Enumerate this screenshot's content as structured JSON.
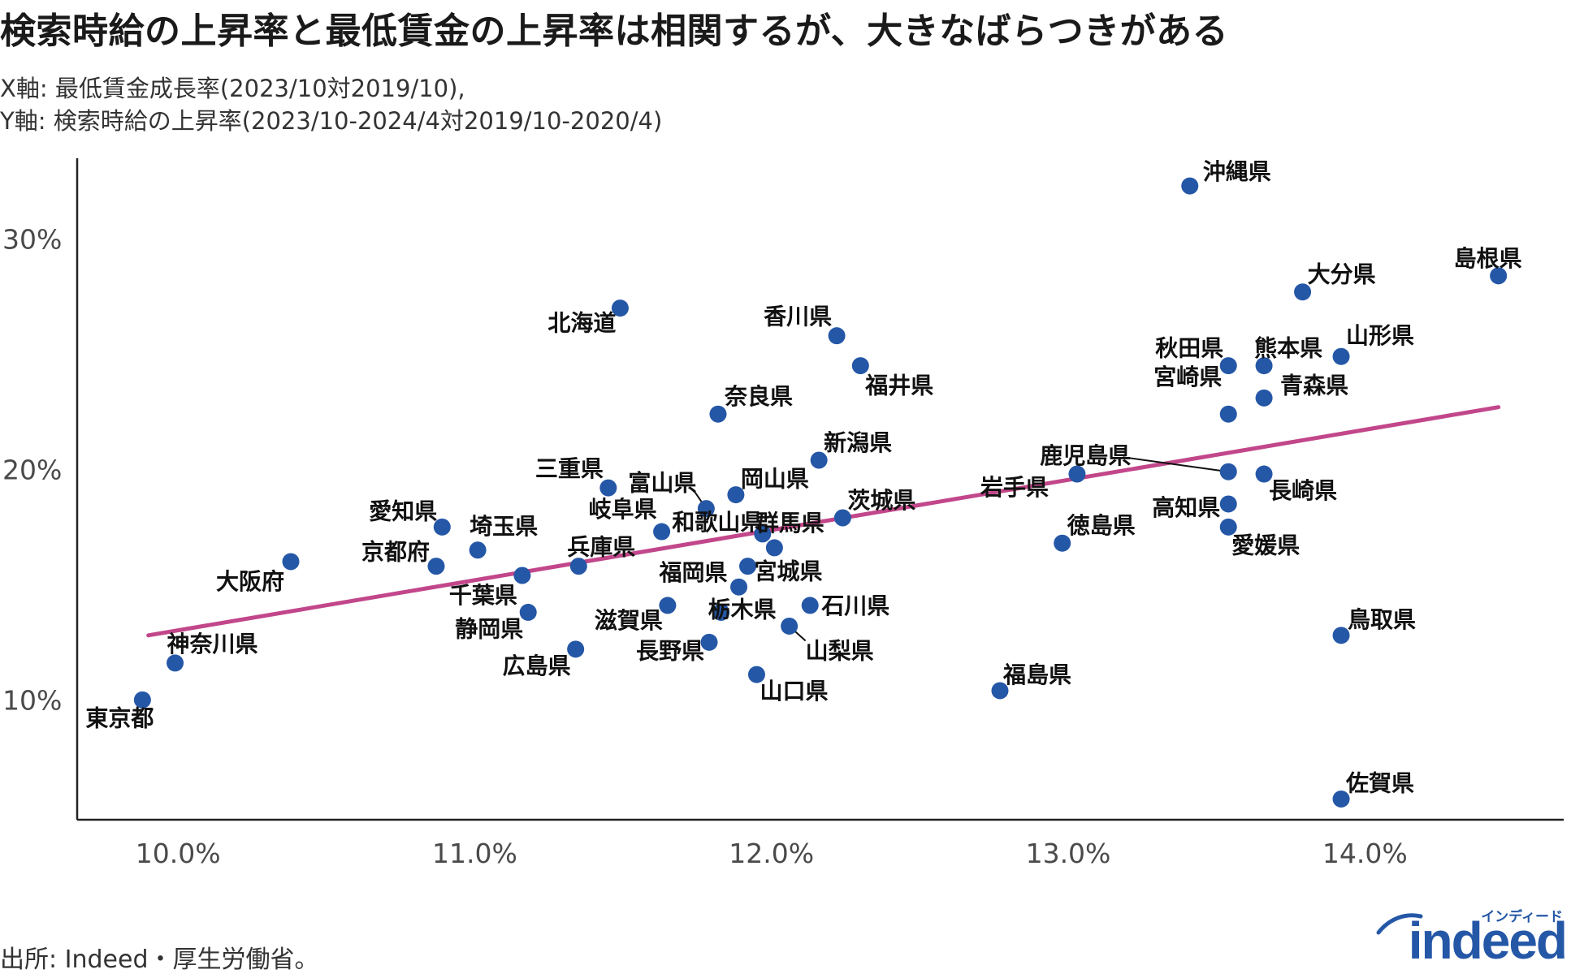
{
  "chart_data": {
    "type": "scatter",
    "title": "検索時給の上昇率と最低賃金の上昇率は相関するが、大きなばらつきがある",
    "subtitle_x": "X軸: 最低賃金成長率(2023/10対2019/10),",
    "subtitle_y": "Y軸: 検索時給の上昇率(2023/10-2024/4対2019/10-2020/4)",
    "x_ticks": [
      "10.0%",
      "11.0%",
      "12.0%",
      "13.0%",
      "14.0%"
    ],
    "y_ticks": [
      "10%",
      "20%",
      "30%"
    ],
    "x_tick_values": [
      10.0,
      11.0,
      12.0,
      13.0,
      14.0
    ],
    "y_tick_values": [
      10,
      20,
      30
    ],
    "xlim": [
      9.66,
      14.67
    ],
    "ylim": [
      4.8,
      33.5
    ],
    "point_color": "#2557a7",
    "trend_color": "#c2478a",
    "trendline": {
      "x1": 9.9,
      "y1": 12.8,
      "x2": 14.45,
      "y2": 22.7
    },
    "points": [
      {
        "label": "沖縄県",
        "x": 13.41,
        "y": 32.3
      },
      {
        "label": "島根県",
        "x": 14.45,
        "y": 28.4
      },
      {
        "label": "大分県",
        "x": 13.79,
        "y": 27.7
      },
      {
        "label": "北海道",
        "x": 11.49,
        "y": 27.0
      },
      {
        "label": "香川県",
        "x": 12.22,
        "y": 25.8
      },
      {
        "label": "山形県",
        "x": 13.92,
        "y": 24.9
      },
      {
        "label": "秋田県",
        "x": 13.54,
        "y": 24.5
      },
      {
        "label": "熊本県",
        "x": 13.66,
        "y": 24.5
      },
      {
        "label": "福井県",
        "x": 12.3,
        "y": 24.5
      },
      {
        "label": "青森県",
        "x": 13.66,
        "y": 23.1
      },
      {
        "label": "奈良県",
        "x": 11.82,
        "y": 22.4
      },
      {
        "label": "宮崎県",
        "x": 13.54,
        "y": 22.4
      },
      {
        "label": "新潟県",
        "x": 12.16,
        "y": 20.4
      },
      {
        "label": "鹿児島県",
        "x": 13.54,
        "y": 19.9
      },
      {
        "label": "岩手県",
        "x": 13.03,
        "y": 19.8
      },
      {
        "label": "長崎県",
        "x": 13.66,
        "y": 19.8
      },
      {
        "label": "三重県",
        "x": 11.45,
        "y": 19.2
      },
      {
        "label": "岡山県",
        "x": 11.88,
        "y": 18.9
      },
      {
        "label": "富山県",
        "x": 11.78,
        "y": 18.3
      },
      {
        "label": "高知県",
        "x": 13.54,
        "y": 18.5
      },
      {
        "label": "茨城県",
        "x": 12.24,
        "y": 17.9
      },
      {
        "label": "愛知県",
        "x": 10.89,
        "y": 17.5
      },
      {
        "label": "愛媛県",
        "x": 13.54,
        "y": 17.5
      },
      {
        "label": "岐阜県",
        "x": 11.63,
        "y": 17.3
      },
      {
        "label": "群馬県",
        "x": 11.97,
        "y": 17.2
      },
      {
        "label": "徳島県",
        "x": 12.98,
        "y": 16.8
      },
      {
        "label": "埼玉県",
        "x": 11.01,
        "y": 16.5
      },
      {
        "label": "和歌山県",
        "x": 12.01,
        "y": 16.6
      },
      {
        "label": "大阪府",
        "x": 10.38,
        "y": 16.0
      },
      {
        "label": "京都府",
        "x": 10.87,
        "y": 15.8
      },
      {
        "label": "宮城県",
        "x": 11.92,
        "y": 15.8
      },
      {
        "label": "兵庫県",
        "x": 11.35,
        "y": 15.8
      },
      {
        "label": "千葉県",
        "x": 11.16,
        "y": 15.4
      },
      {
        "label": "福岡県",
        "x": 11.89,
        "y": 14.9
      },
      {
        "label": "石川県",
        "x": 12.13,
        "y": 14.1
      },
      {
        "label": "滋賀県",
        "x": 11.65,
        "y": 14.1
      },
      {
        "label": "静岡県",
        "x": 11.18,
        "y": 13.8
      },
      {
        "label": "栃木県",
        "x": 11.83,
        "y": 13.8
      },
      {
        "label": "山梨県",
        "x": 12.06,
        "y": 13.2
      },
      {
        "label": "長野県",
        "x": 11.79,
        "y": 12.5
      },
      {
        "label": "鳥取県",
        "x": 13.92,
        "y": 12.8
      },
      {
        "label": "広島県",
        "x": 11.34,
        "y": 12.2
      },
      {
        "label": "神奈川県",
        "x": 9.99,
        "y": 11.6
      },
      {
        "label": "山口県",
        "x": 11.95,
        "y": 11.1
      },
      {
        "label": "福島県",
        "x": 12.77,
        "y": 10.4
      },
      {
        "label": "東京都",
        "x": 9.88,
        "y": 10.0
      },
      {
        "label": "佐賀県",
        "x": 13.92,
        "y": 5.7
      }
    ]
  },
  "source": "出所: Indeed・厚生労働省。",
  "logo": {
    "kana": "インディード",
    "word": "indeed"
  }
}
